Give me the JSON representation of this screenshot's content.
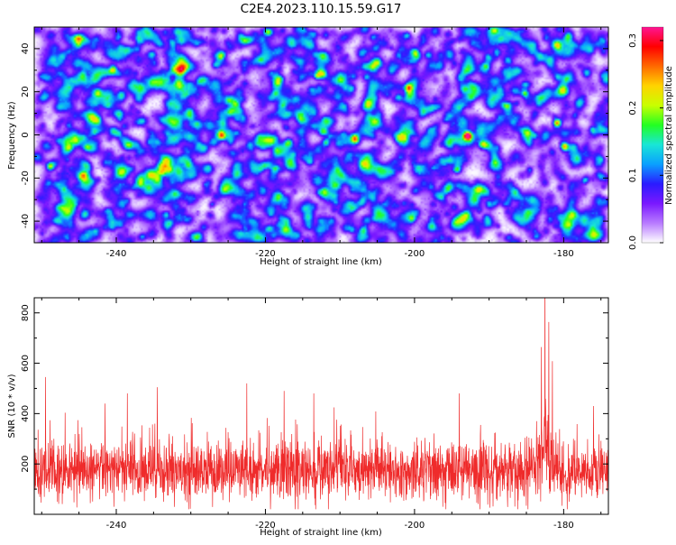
{
  "title": "C2E4.2023.110.15.59.G17",
  "chart_data": [
    {
      "type": "heatmap",
      "xlabel": "Height of straight line (km)",
      "ylabel": "Frequency (Hz)",
      "xlim": [
        -251,
        -174
      ],
      "ylim": [
        -50,
        50
      ],
      "xticks": [
        -240,
        -220,
        -200,
        -180
      ],
      "xtick_labels": [
        "-240",
        "-220",
        "-200",
        "-180"
      ],
      "yticks": [
        -40,
        -20,
        0,
        20,
        40
      ],
      "ytick_labels": [
        "-40",
        "-20",
        "0",
        "20",
        "40"
      ],
      "colorbar": {
        "label": "Normalized spectral amplitude",
        "range": [
          0.0,
          0.32
        ],
        "ticks": [
          0.0,
          0.1,
          0.2,
          0.3
        ],
        "tick_labels": [
          "0.0",
          "0.1",
          "0.2",
          "0.3"
        ],
        "colormap": [
          "#ffffff",
          "#b87bff",
          "#7a18ff",
          "#2a1bff",
          "#0aa0ff",
          "#19e6d6",
          "#22ff22",
          "#c8ff00",
          "#ffd400",
          "#ff6a00",
          "#ff0000",
          "#ff1493"
        ]
      },
      "hotspots": [
        {
          "x": -193,
          "y": 0,
          "value": 0.3
        },
        {
          "x": -181,
          "y": 6,
          "value": 0.25
        },
        {
          "x": -180,
          "y": -5,
          "value": 0.22
        },
        {
          "x": -191,
          "y": -4,
          "value": 0.16
        },
        {
          "x": -212,
          "y": -3,
          "value": 0.14
        },
        {
          "x": -217,
          "y": -3,
          "value": 0.12
        },
        {
          "x": -201,
          "y": 22,
          "value": 0.13
        },
        {
          "x": -208,
          "y": -2,
          "value": 0.12
        },
        {
          "x": -243,
          "y": 2,
          "value": 0.11
        },
        {
          "x": -249,
          "y": -14,
          "value": 0.11
        },
        {
          "x": -226,
          "y": 0,
          "value": 0.12
        },
        {
          "x": -177,
          "y": 29,
          "value": 0.11
        }
      ],
      "grid": false
    },
    {
      "type": "line",
      "xlabel": "Height of straight line (km)",
      "ylabel": "SNR (10 * v/v)",
      "xlim": [
        -251,
        -174
      ],
      "ylim": [
        0,
        860
      ],
      "xticks": [
        -240,
        -220,
        -200,
        -180
      ],
      "xtick_labels": [
        "-240",
        "-220",
        "-200",
        "-180"
      ],
      "yticks": [
        200,
        400,
        600,
        800
      ],
      "ytick_labels": [
        "200",
        "400",
        "600",
        "800"
      ],
      "series_color": "#ef2b2b",
      "baseline_mean": 175,
      "noise_amplitude": 95,
      "peaks": [
        {
          "x": -249.5,
          "y": 545
        },
        {
          "x": -241.5,
          "y": 440
        },
        {
          "x": -238.5,
          "y": 480
        },
        {
          "x": -234.5,
          "y": 505
        },
        {
          "x": -222.5,
          "y": 520
        },
        {
          "x": -217.5,
          "y": 490
        },
        {
          "x": -213.5,
          "y": 480
        },
        {
          "x": -194,
          "y": 480
        },
        {
          "x": -182.5,
          "y": 850
        },
        {
          "x": -182,
          "y": 760
        },
        {
          "x": -181.5,
          "y": 560
        },
        {
          "x": -183,
          "y": 600
        },
        {
          "x": -176,
          "y": 430
        }
      ],
      "grid": false
    }
  ]
}
